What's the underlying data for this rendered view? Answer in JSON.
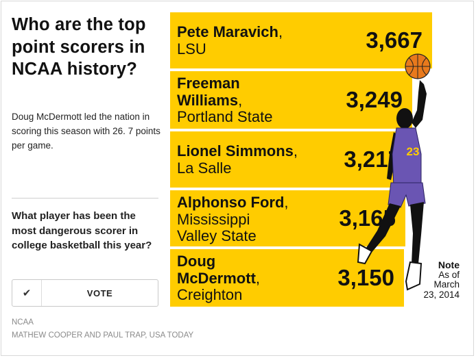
{
  "title": "Who are the top point scorers in NCAA history?",
  "intro": "Doug McDermott led the nation in scoring this season with 26. 7 points per game.",
  "poll": {
    "question": "What player has been the most dangerous scorer in college basketball this year?",
    "vote_label": "VOTE",
    "check_glyph": "✔"
  },
  "source": {
    "line1": "NCAA",
    "line2": "MATHEW COOPER AND PAUL TRAP, USA TODAY"
  },
  "note": {
    "title": "Note",
    "lines": [
      "As of",
      "March",
      "23, 2014"
    ]
  },
  "player_jersey_number": "23",
  "colors": {
    "bar": "#ffcc00",
    "jersey": "#6a55b3",
    "ball": "#e8791c",
    "skin": "#111111"
  },
  "chart_data": {
    "type": "bar",
    "orientation": "horizontal",
    "title": "Who are the top point scorers in NCAA history?",
    "categories": [
      "Pete Maravich",
      "Freeman Williams",
      "Lionel Simmons",
      "Alphonso Ford",
      "Doug McDermott"
    ],
    "schools": [
      "LSU",
      "Portland State",
      "La Salle",
      "Mississippi Valley State",
      "Creighton"
    ],
    "values": [
      3667,
      3249,
      3217,
      3165,
      3150
    ],
    "value_labels": [
      "3,667",
      "3,249",
      "3,217",
      "3,165",
      "3,150"
    ],
    "name_lines": [
      [
        [
          "Pete Maravich",
          ","
        ],
        [
          "LSU"
        ]
      ],
      [
        [
          "Freeman"
        ],
        [
          "Williams",
          ","
        ],
        [
          "Portland State"
        ]
      ],
      [
        [
          "Lionel Simmons",
          ","
        ],
        [
          "La Salle"
        ]
      ],
      [
        [
          "Alphonso Ford",
          ","
        ],
        [
          "Mississippi"
        ],
        [
          "Valley State"
        ]
      ],
      [
        [
          "Doug"
        ],
        [
          "McDermott",
          ","
        ],
        [
          "Creighton"
        ]
      ]
    ],
    "bold_lines": [
      1,
      2,
      1,
      1,
      2
    ],
    "xlabel": "",
    "ylabel": "",
    "legend": "none",
    "grid": false
  }
}
